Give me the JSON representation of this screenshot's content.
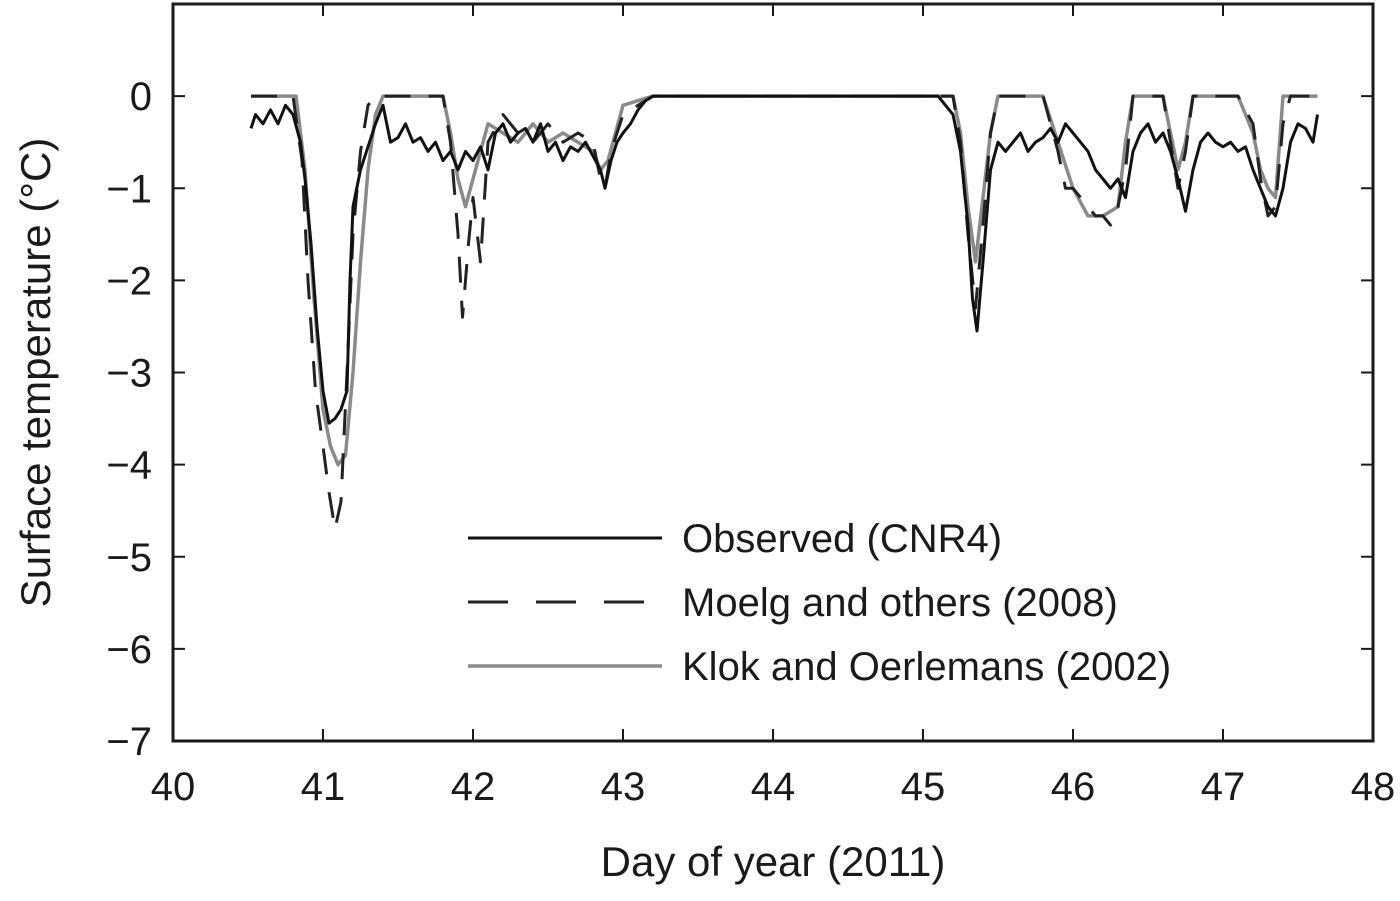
{
  "chart_data": {
    "type": "line",
    "title": "",
    "xlabel": "Day of year (2011)",
    "ylabel": "Surface temperature (°C)",
    "xlim": [
      40,
      48
    ],
    "ylim": [
      -7,
      1
    ],
    "x_ticks": [
      40,
      41,
      42,
      43,
      44,
      45,
      46,
      47,
      48
    ],
    "y_ticks": [
      0,
      -1,
      -2,
      -3,
      -4,
      -5,
      -6,
      -7
    ],
    "x_tick_labels": [
      "40",
      "41",
      "42",
      "43",
      "44",
      "45",
      "46",
      "47",
      "48"
    ],
    "y_tick_labels": [
      "0",
      "−1",
      "−2",
      "−3",
      "−4",
      "−5",
      "−6",
      "−7"
    ],
    "grid": false,
    "legend_position": "lower-right",
    "series": [
      {
        "name": "Observed (CNR4)",
        "style": "solid",
        "color": "#111111",
        "x": [
          40.52,
          40.55,
          40.6,
          40.65,
          40.7,
          40.75,
          40.8,
          40.85,
          40.88,
          40.92,
          40.96,
          41.0,
          41.04,
          41.08,
          41.12,
          41.16,
          41.18,
          41.2,
          41.25,
          41.3,
          41.35,
          41.4,
          41.45,
          41.5,
          41.55,
          41.6,
          41.65,
          41.7,
          41.75,
          41.8,
          41.85,
          41.9,
          41.95,
          42.0,
          42.05,
          42.1,
          42.15,
          42.2,
          42.25,
          42.3,
          42.35,
          42.4,
          42.45,
          42.5,
          42.55,
          42.6,
          42.65,
          42.7,
          42.75,
          42.8,
          42.85,
          42.88,
          42.92,
          42.96,
          43.0,
          43.05,
          43.1,
          43.15,
          43.2,
          43.3,
          45.0,
          45.1,
          45.2,
          45.25,
          45.3,
          45.33,
          45.36,
          45.4,
          45.45,
          45.5,
          45.55,
          45.6,
          45.65,
          45.7,
          45.75,
          45.8,
          45.85,
          45.9,
          45.95,
          46.0,
          46.05,
          46.1,
          46.15,
          46.2,
          46.25,
          46.3,
          46.35,
          46.4,
          46.45,
          46.5,
          46.55,
          46.6,
          46.65,
          46.7,
          46.75,
          46.8,
          46.85,
          46.9,
          46.95,
          47.0,
          47.05,
          47.1,
          47.15,
          47.2,
          47.25,
          47.3,
          47.35,
          47.4,
          47.45,
          47.5,
          47.55,
          47.6,
          47.63
        ],
        "y": [
          -0.35,
          -0.2,
          -0.3,
          -0.15,
          -0.3,
          -0.1,
          -0.2,
          -0.5,
          -0.9,
          -1.6,
          -2.5,
          -3.2,
          -3.55,
          -3.5,
          -3.4,
          -3.2,
          -2.0,
          -1.2,
          -0.8,
          -0.55,
          -0.3,
          -0.1,
          -0.5,
          -0.45,
          -0.3,
          -0.5,
          -0.45,
          -0.6,
          -0.5,
          -0.7,
          -0.6,
          -0.8,
          -0.6,
          -0.7,
          -0.55,
          -0.8,
          -0.4,
          -0.3,
          -0.5,
          -0.4,
          -0.35,
          -0.5,
          -0.3,
          -0.6,
          -0.5,
          -0.7,
          -0.55,
          -0.6,
          -0.5,
          -0.65,
          -0.8,
          -1.0,
          -0.7,
          -0.5,
          -0.4,
          -0.3,
          -0.15,
          -0.05,
          0,
          0,
          0,
          0,
          -0.2,
          -0.6,
          -1.4,
          -2.2,
          -2.55,
          -1.8,
          -0.8,
          -0.5,
          -0.6,
          -0.5,
          -0.4,
          -0.6,
          -0.5,
          -0.45,
          -0.35,
          -0.5,
          -0.3,
          -0.4,
          -0.5,
          -0.6,
          -0.8,
          -0.9,
          -1.0,
          -0.9,
          -1.1,
          -0.6,
          -0.4,
          -0.3,
          -0.5,
          -0.4,
          -0.6,
          -0.9,
          -1.25,
          -0.8,
          -0.5,
          -0.4,
          -0.5,
          -0.55,
          -0.5,
          -0.6,
          -0.55,
          -0.8,
          -1.0,
          -1.2,
          -1.3,
          -1.0,
          -0.5,
          -0.3,
          -0.35,
          -0.5,
          -0.2
        ]
      },
      {
        "name": "Moelg and others (2008)",
        "style": "dashed",
        "color": "#222222",
        "x": [
          40.52,
          40.8,
          40.86,
          40.9,
          40.95,
          41.0,
          41.04,
          41.08,
          41.12,
          41.16,
          41.2,
          41.25,
          41.3,
          41.35,
          41.4,
          41.8,
          41.85,
          41.9,
          41.93,
          41.97,
          42.0,
          42.05,
          42.1,
          42.2,
          42.3,
          42.4,
          42.5,
          42.6,
          42.7,
          42.8,
          42.85,
          42.88,
          42.92,
          43.0,
          43.2,
          43.3,
          45.0,
          45.2,
          45.25,
          45.3,
          45.35,
          45.4,
          45.45,
          45.5,
          45.6,
          45.8,
          45.9,
          45.95,
          46.0,
          46.05,
          46.1,
          46.15,
          46.2,
          46.25,
          46.3,
          46.35,
          46.4,
          46.6,
          46.65,
          46.7,
          46.75,
          46.8,
          46.9,
          47.0,
          47.1,
          47.2,
          47.25,
          47.3,
          47.35,
          47.4,
          47.45,
          47.63
        ],
        "y": [
          0,
          0,
          -0.7,
          -2.0,
          -3.2,
          -3.8,
          -4.3,
          -4.7,
          -4.4,
          -3.0,
          -1.5,
          -0.6,
          -0.1,
          0,
          0,
          0,
          -0.5,
          -1.5,
          -2.4,
          -1.6,
          -1.1,
          -1.8,
          -0.5,
          -0.2,
          -0.4,
          -0.5,
          -0.3,
          -0.5,
          -0.4,
          -0.5,
          -0.9,
          -1.0,
          -0.6,
          -0.2,
          0,
          0,
          0,
          0,
          -0.5,
          -1.5,
          -2.3,
          -1.4,
          -0.4,
          0,
          0,
          0,
          -0.6,
          -1.0,
          -1.0,
          -1.1,
          -1.2,
          -1.3,
          -1.3,
          -1.4,
          -1.2,
          -0.8,
          0,
          0,
          -0.5,
          -1.0,
          -0.6,
          0,
          0,
          0,
          0,
          -0.3,
          -0.9,
          -1.3,
          -1.2,
          -0.3,
          0,
          0
        ]
      },
      {
        "name": "Klok and Oerlemans (2002)",
        "style": "solid",
        "color": "#8a8a8a",
        "x": [
          40.52,
          40.82,
          40.88,
          40.94,
          41.0,
          41.05,
          41.1,
          41.15,
          41.2,
          41.25,
          41.3,
          41.35,
          41.4,
          41.8,
          41.85,
          41.9,
          41.95,
          42.0,
          42.05,
          42.1,
          42.2,
          42.3,
          42.4,
          42.5,
          42.6,
          42.7,
          42.8,
          42.85,
          42.9,
          42.95,
          43.0,
          43.2,
          43.3,
          45.0,
          45.2,
          45.25,
          45.3,
          45.35,
          45.4,
          45.45,
          45.5,
          45.6,
          45.8,
          45.9,
          46.0,
          46.1,
          46.2,
          46.3,
          46.35,
          46.4,
          46.6,
          46.65,
          46.7,
          46.75,
          46.8,
          46.9,
          47.0,
          47.1,
          47.2,
          47.25,
          47.3,
          47.35,
          47.4,
          47.63
        ],
        "y": [
          0,
          0,
          -0.8,
          -2.2,
          -3.4,
          -3.8,
          -4.0,
          -3.9,
          -3.0,
          -1.8,
          -0.8,
          -0.2,
          0,
          0,
          -0.4,
          -0.9,
          -1.2,
          -0.9,
          -0.6,
          -0.3,
          -0.4,
          -0.5,
          -0.3,
          -0.5,
          -0.4,
          -0.5,
          -0.6,
          -0.8,
          -0.7,
          -0.4,
          -0.1,
          0,
          0,
          0,
          0,
          -0.4,
          -1.2,
          -1.8,
          -1.1,
          -0.4,
          0,
          0,
          0,
          -0.5,
          -1.0,
          -1.3,
          -1.3,
          -1.2,
          -0.5,
          0,
          0,
          -0.4,
          -0.8,
          -0.5,
          0,
          0,
          0,
          0,
          -0.4,
          -0.8,
          -1.0,
          -1.1,
          0,
          0
        ]
      }
    ]
  }
}
